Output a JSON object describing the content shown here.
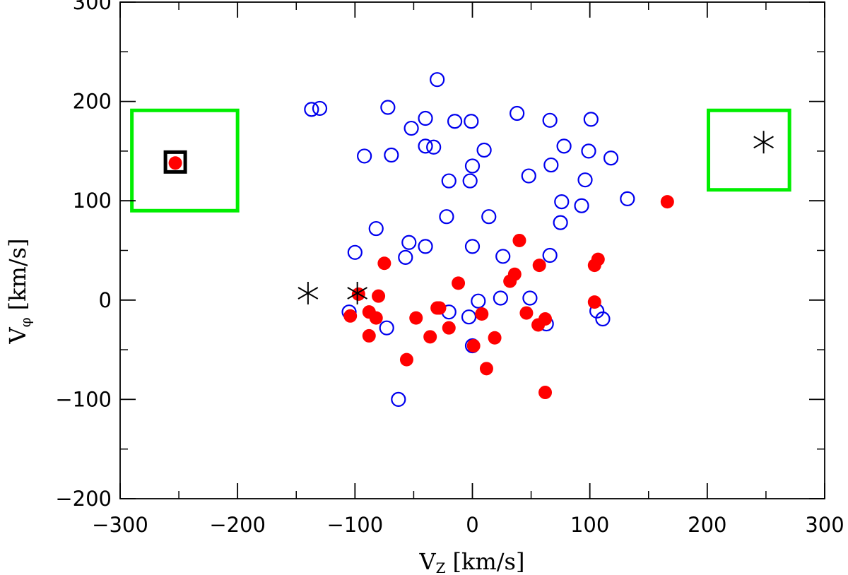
{
  "chart_data": {
    "type": "scatter",
    "title": "",
    "xlabel": {
      "main": "V",
      "sub": "Z",
      "unit": "[km/s]"
    },
    "ylabel": {
      "main": "V",
      "sub": "φ",
      "unit": "[km/s]"
    },
    "xlim": [
      -300,
      300
    ],
    "ylim": [
      -200,
      300
    ],
    "xticks": [
      -300,
      -200,
      -100,
      0,
      100,
      200,
      300
    ],
    "yticks": [
      -200,
      -100,
      0,
      100,
      200,
      300
    ],
    "xtick_labels": [
      "−300",
      "−200",
      "−100",
      "0",
      "100",
      "200",
      "300"
    ],
    "ytick_labels": [
      "−200",
      "−100",
      "0",
      "100",
      "200",
      "300"
    ],
    "colors": {
      "open_circles": "#0000ee",
      "filled_circles": "#ff0000",
      "asterisks": "#000000",
      "square": "#000000",
      "boxes": "#00ee00"
    },
    "series": [
      {
        "name": "open circles",
        "marker": "open-circle",
        "points": [
          [
            -30,
            222
          ],
          [
            -137,
            192
          ],
          [
            -130,
            193
          ],
          [
            -72,
            194
          ],
          [
            -40,
            183
          ],
          [
            -52,
            173
          ],
          [
            -15,
            180
          ],
          [
            -1,
            180
          ],
          [
            38,
            188
          ],
          [
            66,
            181
          ],
          [
            101,
            182
          ],
          [
            -40,
            155
          ],
          [
            -33,
            154
          ],
          [
            -92,
            145
          ],
          [
            -69,
            146
          ],
          [
            10,
            151
          ],
          [
            78,
            155
          ],
          [
            99,
            150
          ],
          [
            118,
            143
          ],
          [
            0,
            135
          ],
          [
            48,
            125
          ],
          [
            67,
            136
          ],
          [
            -20,
            120
          ],
          [
            -2,
            120
          ],
          [
            96,
            121
          ],
          [
            132,
            102
          ],
          [
            76,
            99
          ],
          [
            93,
            95
          ],
          [
            -22,
            84
          ],
          [
            14,
            84
          ],
          [
            75,
            78
          ],
          [
            -82,
            72
          ],
          [
            -54,
            58
          ],
          [
            -40,
            54
          ],
          [
            0,
            54
          ],
          [
            -100,
            48
          ],
          [
            -57,
            43
          ],
          [
            26,
            44
          ],
          [
            66,
            45
          ],
          [
            -105,
            -12
          ],
          [
            -20,
            -12
          ],
          [
            5,
            -1
          ],
          [
            24,
            2
          ],
          [
            49,
            2
          ],
          [
            -3,
            -17
          ],
          [
            -73,
            -28
          ],
          [
            0,
            -46
          ],
          [
            63,
            -24
          ],
          [
            106,
            -11
          ],
          [
            111,
            -19
          ],
          [
            -63,
            -100
          ]
        ]
      },
      {
        "name": "filled circles",
        "marker": "filled-circle",
        "points": [
          [
            -253,
            138
          ],
          [
            166,
            99
          ],
          [
            40,
            60
          ],
          [
            -75,
            37
          ],
          [
            57,
            35
          ],
          [
            36,
            26
          ],
          [
            32,
            19
          ],
          [
            -12,
            17
          ],
          [
            107,
            41
          ],
          [
            104,
            35
          ],
          [
            -80,
            4
          ],
          [
            -97,
            6
          ],
          [
            -104,
            -16
          ],
          [
            -88,
            -12
          ],
          [
            -82,
            -18
          ],
          [
            -30,
            -8
          ],
          [
            -48,
            -18
          ],
          [
            -28,
            -8
          ],
          [
            8,
            -14
          ],
          [
            46,
            -13
          ],
          [
            104,
            -2
          ],
          [
            -20,
            -28
          ],
          [
            56,
            -25
          ],
          [
            62,
            -19
          ],
          [
            -88,
            -36
          ],
          [
            -36,
            -37
          ],
          [
            19,
            -38
          ],
          [
            1,
            -46
          ],
          [
            -56,
            -60
          ],
          [
            12,
            -69
          ],
          [
            62,
            -93
          ]
        ]
      },
      {
        "name": "asterisks",
        "marker": "asterisk",
        "points": [
          [
            -140,
            7
          ],
          [
            -98,
            7
          ],
          [
            248,
            159
          ]
        ]
      },
      {
        "name": "open square",
        "marker": "open-square",
        "points": [
          [
            -253,
            139
          ]
        ]
      }
    ],
    "boxes": [
      {
        "name": "left box",
        "x": [
          -290,
          -200
        ],
        "y": [
          90,
          191
        ]
      },
      {
        "name": "right box",
        "x": [
          201,
          270
        ],
        "y": [
          111,
          191
        ]
      }
    ]
  }
}
